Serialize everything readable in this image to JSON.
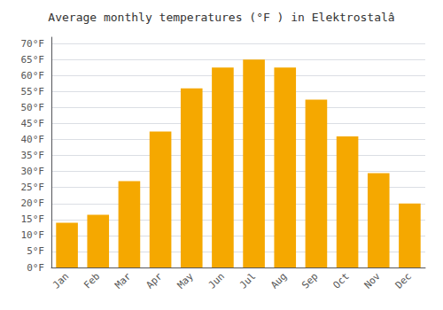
{
  "chart_data": {
    "type": "bar",
    "title": "Average monthly temperatures (°F ) in Elektrostalâ",
    "categories": [
      "Jan",
      "Feb",
      "Mar",
      "Apr",
      "May",
      "Jun",
      "Jul",
      "Aug",
      "Sep",
      "Oct",
      "Nov",
      "Dec"
    ],
    "values": [
      14,
      16.5,
      27,
      42.5,
      56,
      62.5,
      65,
      62.5,
      52.5,
      41,
      29.5,
      20
    ],
    "color": "#F5A800",
    "ylim": [
      0,
      72
    ],
    "yticks": [
      {
        "value": 0,
        "label": "0°F"
      },
      {
        "value": 5,
        "label": "5°F"
      },
      {
        "value": 10,
        "label": "10°F"
      },
      {
        "value": 15,
        "label": "15°F"
      },
      {
        "value": 20,
        "label": "20°F"
      },
      {
        "value": 25,
        "label": "25°F"
      },
      {
        "value": 30,
        "label": "30°F"
      },
      {
        "value": 35,
        "label": "35°F"
      },
      {
        "value": 40,
        "label": "40°F"
      },
      {
        "value": 45,
        "label": "45°F"
      },
      {
        "value": 50,
        "label": "50°F"
      },
      {
        "value": 55,
        "label": "55°F"
      },
      {
        "value": 60,
        "label": "60°F"
      },
      {
        "value": 65,
        "label": "65°F"
      },
      {
        "value": 70,
        "label": "70°F"
      }
    ],
    "grid": true
  }
}
